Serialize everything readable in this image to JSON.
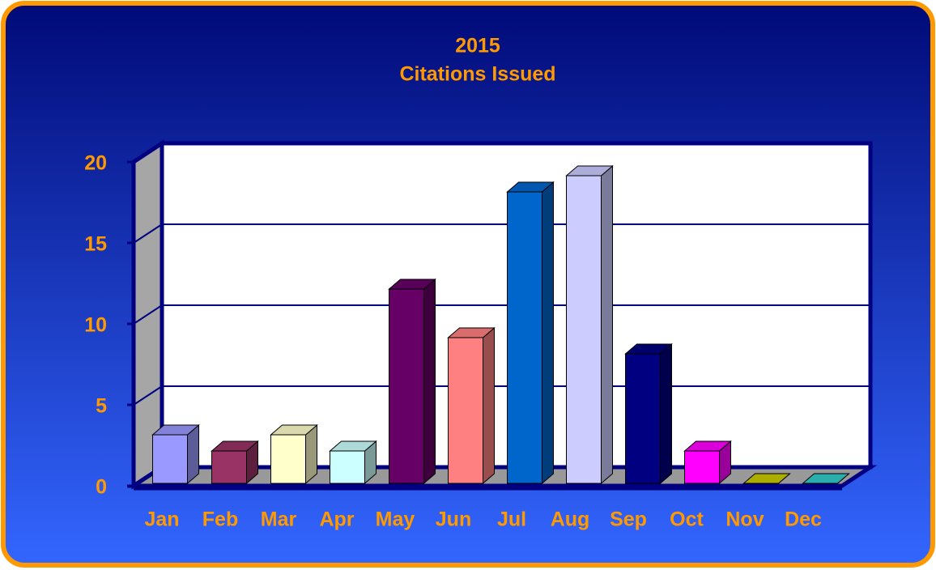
{
  "chart_data": {
    "type": "bar3d",
    "title": [
      "2015",
      "Citations Issued"
    ],
    "categories": [
      "Jan",
      "Feb",
      "Mar",
      "Apr",
      "May",
      "Jun",
      "Jul",
      "Aug",
      "Sep",
      "Oct",
      "Nov",
      "Dec"
    ],
    "values": [
      3,
      2,
      3,
      2,
      12,
      9,
      18,
      19,
      8,
      2,
      0,
      0
    ],
    "colors": [
      "#9999ff",
      "#993366",
      "#ffffcc",
      "#ccffff",
      "#660066",
      "#ff8080",
      "#0066cc",
      "#ccccff",
      "#000080",
      "#ff00ff",
      "#cccc00",
      "#33cccc"
    ],
    "ylim": [
      0,
      20
    ],
    "yticks": [
      0,
      5,
      10,
      15,
      20
    ],
    "grid": true
  }
}
